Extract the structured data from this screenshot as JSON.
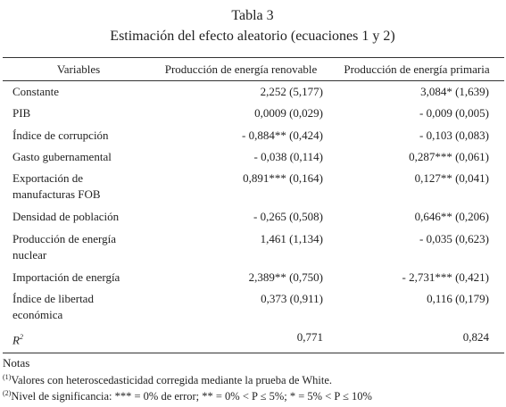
{
  "header": {
    "title": "Tabla 3",
    "subtitle": "Estimación del efecto aleatorio (ecuaciones 1 y 2)"
  },
  "table": {
    "columns": [
      "Variables",
      "Producción de energía renovable",
      "Producción de energía primaria"
    ],
    "rows": [
      {
        "label": [
          "Constante"
        ],
        "values": [
          "2,252 (5,177)",
          "3,084* (1,639)"
        ]
      },
      {
        "label": [
          "PIB"
        ],
        "values": [
          "0,0009 (0,029)",
          "- 0,009 (0,005)"
        ]
      },
      {
        "label": [
          "Índice de corrupción"
        ],
        "values": [
          "- 0,884** (0,424)",
          "- 0,103 (0,083)"
        ]
      },
      {
        "label": [
          "Gasto gubernamental"
        ],
        "values": [
          "- 0,038 (0,114)",
          "0,287*** (0,061)"
        ]
      },
      {
        "label": [
          "Exportación de",
          "manufacturas FOB"
        ],
        "values": [
          "0,891*** (0,164)",
          "0,127** (0,041)"
        ]
      },
      {
        "label": [
          "Densidad de población"
        ],
        "values": [
          "- 0,265 (0,508)",
          "0,646** (0,206)"
        ]
      },
      {
        "label": [
          "Producción de energía",
          "nuclear"
        ],
        "values": [
          "1,461 (1,134)",
          "- 0,035 (0,623)"
        ]
      },
      {
        "label": [
          "Importación de energía"
        ],
        "values": [
          "2,389** (0,750)",
          "- 2,731*** (0,421)"
        ]
      },
      {
        "label": [
          "Índice de libertad",
          "económica"
        ],
        "values": [
          "0,373 (0,911)",
          "0,116 (0,179)"
        ]
      },
      {
        "label": [
          "R"
        ],
        "label_sup": "2",
        "values": [
          "0,771",
          "0,824"
        ]
      }
    ]
  },
  "notes": {
    "heading": "Notas",
    "items": [
      {
        "mark": "(1)",
        "text": "Valores con heteroscedasticidad corregida mediante la prueba de White."
      },
      {
        "mark": "(2)",
        "text": "Nivel de significancia: *** = 0% de error; ** = 0% < P ≤ 5%; * = 5% < P ≤ 10%"
      }
    ]
  }
}
